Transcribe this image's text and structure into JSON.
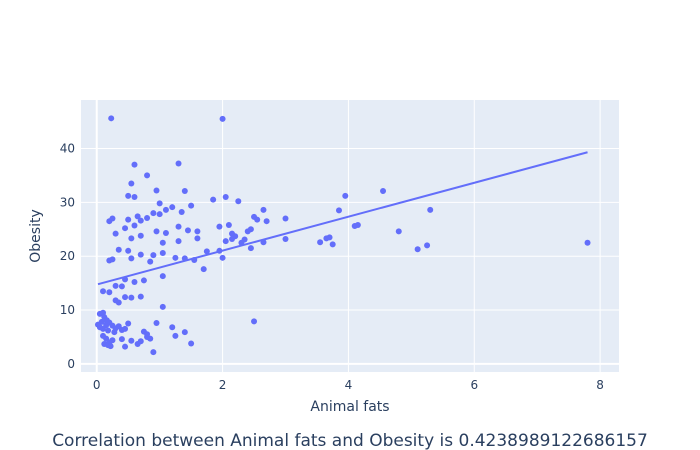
{
  "chart_data": {
    "type": "scatter",
    "xlabel": "Animal fats",
    "ylabel": "Obesity",
    "caption": "Correlation between Animal fats and Obesity is 0.4238989122686157",
    "xlim": [
      -0.25,
      8.3
    ],
    "ylim": [
      -1.5,
      49
    ],
    "xticks": [
      0,
      2,
      4,
      6,
      8
    ],
    "yticks": [
      0,
      10,
      20,
      30,
      40
    ],
    "grid": true,
    "colors": {
      "marker": "#636efa",
      "trend": "#636efa",
      "plot_bg": "#e5ecf6",
      "grid": "#ffffff",
      "text": "#2a3f5f"
    },
    "trendline": {
      "x": [
        0.02,
        7.8
      ],
      "y": [
        14.8,
        39.3
      ]
    },
    "points": [
      [
        0.23,
        45.6
      ],
      [
        2.0,
        45.5
      ],
      [
        0.6,
        37.0
      ],
      [
        1.3,
        37.2
      ],
      [
        0.8,
        35.0
      ],
      [
        0.55,
        33.5
      ],
      [
        0.95,
        32.2
      ],
      [
        1.4,
        32.1
      ],
      [
        0.6,
        31.0
      ],
      [
        0.5,
        31.2
      ],
      [
        0.2,
        26.5
      ],
      [
        0.25,
        27.0
      ],
      [
        0.5,
        26.8
      ],
      [
        0.65,
        27.4
      ],
      [
        0.7,
        26.6
      ],
      [
        0.8,
        27.1
      ],
      [
        0.9,
        28.0
      ],
      [
        1.0,
        27.8
      ],
      [
        1.1,
        28.6
      ],
      [
        1.2,
        29.1
      ],
      [
        1.35,
        28.2
      ],
      [
        1.5,
        29.4
      ],
      [
        0.3,
        24.2
      ],
      [
        0.45,
        25.2
      ],
      [
        0.55,
        23.3
      ],
      [
        0.7,
        23.8
      ],
      [
        0.95,
        24.6
      ],
      [
        1.1,
        24.3
      ],
      [
        1.3,
        25.5
      ],
      [
        1.45,
        24.8
      ],
      [
        1.6,
        24.6
      ],
      [
        1.0,
        29.8
      ],
      [
        0.6,
        25.7
      ],
      [
        0.35,
        21.2
      ],
      [
        0.5,
        21.0
      ],
      [
        0.7,
        20.3
      ],
      [
        0.55,
        19.6
      ],
      [
        0.9,
        20.2
      ],
      [
        1.05,
        20.6
      ],
      [
        1.25,
        19.7
      ],
      [
        1.4,
        19.6
      ],
      [
        1.55,
        19.3
      ],
      [
        1.75,
        20.9
      ],
      [
        1.95,
        21.0
      ],
      [
        1.05,
        22.5
      ],
      [
        1.3,
        22.8
      ],
      [
        1.6,
        23.3
      ],
      [
        0.2,
        19.2
      ],
      [
        0.25,
        19.4
      ],
      [
        0.85,
        19.0
      ],
      [
        1.05,
        16.3
      ],
      [
        0.75,
        15.5
      ],
      [
        0.6,
        15.2
      ],
      [
        0.45,
        15.7
      ],
      [
        0.4,
        14.4
      ],
      [
        0.3,
        14.5
      ],
      [
        1.7,
        17.6
      ],
      [
        0.1,
        13.5
      ],
      [
        0.2,
        13.3
      ],
      [
        0.3,
        11.8
      ],
      [
        0.35,
        11.4
      ],
      [
        0.45,
        12.4
      ],
      [
        0.55,
        12.3
      ],
      [
        0.7,
        12.5
      ],
      [
        0.05,
        9.3
      ],
      [
        0.1,
        9.5
      ],
      [
        0.12,
        8.7
      ],
      [
        0.16,
        8.1
      ],
      [
        0.2,
        7.7
      ],
      [
        0.08,
        7.8
      ],
      [
        0.15,
        7.2
      ],
      [
        0.25,
        7.1
      ],
      [
        0.3,
        6.6
      ],
      [
        0.35,
        7.0
      ],
      [
        0.4,
        6.3
      ],
      [
        0.02,
        7.3
      ],
      [
        0.05,
        6.8
      ],
      [
        0.1,
        6.5
      ],
      [
        0.18,
        6.2
      ],
      [
        0.28,
        5.9
      ],
      [
        0.45,
        6.5
      ],
      [
        0.5,
        7.5
      ],
      [
        0.1,
        5.2
      ],
      [
        0.15,
        4.7
      ],
      [
        0.2,
        4.0
      ],
      [
        0.25,
        4.4
      ],
      [
        0.12,
        3.7
      ],
      [
        0.18,
        3.5
      ],
      [
        0.22,
        3.3
      ],
      [
        0.4,
        4.6
      ],
      [
        0.45,
        3.2
      ],
      [
        0.55,
        4.3
      ],
      [
        0.65,
        3.7
      ],
      [
        0.7,
        4.2
      ],
      [
        0.8,
        5.0
      ],
      [
        0.85,
        4.7
      ],
      [
        0.75,
        6.0
      ],
      [
        0.8,
        5.5
      ],
      [
        0.95,
        7.6
      ],
      [
        1.05,
        10.6
      ],
      [
        1.2,
        6.8
      ],
      [
        1.25,
        5.2
      ],
      [
        1.4,
        5.9
      ],
      [
        1.5,
        3.8
      ],
      [
        0.9,
        2.2
      ],
      [
        1.85,
        30.5
      ],
      [
        2.05,
        31.0
      ],
      [
        2.25,
        30.2
      ],
      [
        1.95,
        25.5
      ],
      [
        2.1,
        25.8
      ],
      [
        2.15,
        24.2
      ],
      [
        2.2,
        23.7
      ],
      [
        2.35,
        23.1
      ],
      [
        2.45,
        25.0
      ],
      [
        2.5,
        27.3
      ],
      [
        2.55,
        26.8
      ],
      [
        2.65,
        28.6
      ],
      [
        2.7,
        26.5
      ],
      [
        2.05,
        22.8
      ],
      [
        2.3,
        22.5
      ],
      [
        2.45,
        21.5
      ],
      [
        2.65,
        22.6
      ],
      [
        2.0,
        19.7
      ],
      [
        2.4,
        24.6
      ],
      [
        2.15,
        23.2
      ],
      [
        3.0,
        27.0
      ],
      [
        3.0,
        23.2
      ],
      [
        3.55,
        22.6
      ],
      [
        3.65,
        23.3
      ],
      [
        3.75,
        22.2
      ],
      [
        3.7,
        23.5
      ],
      [
        3.85,
        28.5
      ],
      [
        3.95,
        31.2
      ],
      [
        4.1,
        25.6
      ],
      [
        4.15,
        25.8
      ],
      [
        4.55,
        32.1
      ],
      [
        4.8,
        24.6
      ],
      [
        5.1,
        21.3
      ],
      [
        5.25,
        22.0
      ],
      [
        5.3,
        28.6
      ],
      [
        7.8,
        22.5
      ],
      [
        2.5,
        7.9
      ]
    ]
  }
}
